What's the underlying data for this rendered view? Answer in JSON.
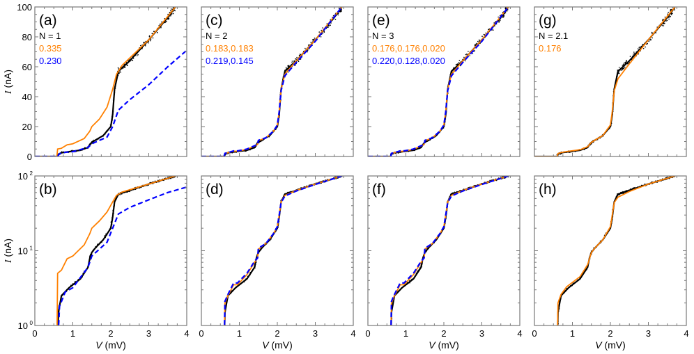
{
  "chart_data": {
    "type": "line",
    "xlabel": "V (mV)",
    "ylabel": "I (nA)",
    "xlim": [
      0,
      4
    ],
    "xticks": [
      "0",
      "1",
      "2",
      "3",
      "4"
    ],
    "ylim_linear": [
      0,
      100
    ],
    "yticks_linear": [
      "0",
      "20",
      "40",
      "60",
      "80",
      "100"
    ],
    "ylim_log": [
      1,
      100
    ],
    "yscale_log_ticks": [
      "10",
      "10",
      "10"
    ],
    "yscale_log_exponents": [
      "0",
      "1",
      "2"
    ],
    "colors": {
      "experiment": "#000000",
      "fit1": "#ff8000",
      "fit2": "#0000ff"
    },
    "curves": {
      "exp": [
        [
          0,
          0
        ],
        [
          0.6,
          0
        ],
        [
          0.62,
          1.5
        ],
        [
          0.7,
          2.5
        ],
        [
          0.9,
          3.2
        ],
        [
          1.2,
          4.2
        ],
        [
          1.4,
          6
        ],
        [
          1.45,
          8
        ],
        [
          1.5,
          9.5
        ],
        [
          1.6,
          11
        ],
        [
          1.8,
          14
        ],
        [
          2.0,
          20
        ],
        [
          2.05,
          28
        ],
        [
          2.1,
          45
        ],
        [
          2.2,
          57
        ],
        [
          2.5,
          64
        ],
        [
          3.0,
          78
        ],
        [
          3.5,
          93
        ],
        [
          3.7,
          100
        ]
      ],
      "a_orange": [
        [
          0,
          0
        ],
        [
          0.58,
          0
        ],
        [
          0.6,
          5
        ],
        [
          0.7,
          5.5
        ],
        [
          0.85,
          7.8
        ],
        [
          1.0,
          8.5
        ],
        [
          1.3,
          12
        ],
        [
          1.45,
          17
        ],
        [
          1.5,
          20
        ],
        [
          1.7,
          25
        ],
        [
          1.9,
          33
        ],
        [
          2.05,
          45
        ],
        [
          2.15,
          55
        ],
        [
          2.3,
          61
        ],
        [
          3.0,
          78
        ],
        [
          3.7,
          100
        ]
      ],
      "a_blue": [
        [
          0,
          0
        ],
        [
          0.6,
          0
        ],
        [
          0.65,
          1.8
        ],
        [
          0.8,
          2.8
        ],
        [
          1.0,
          3.2
        ],
        [
          1.4,
          6
        ],
        [
          1.5,
          8.5
        ],
        [
          1.9,
          13
        ],
        [
          2.05,
          20
        ],
        [
          2.2,
          31
        ],
        [
          2.5,
          38
        ],
        [
          3.0,
          48
        ],
        [
          3.5,
          60
        ],
        [
          4.0,
          71
        ]
      ],
      "c_orange": [
        [
          0,
          0
        ],
        [
          0.6,
          0
        ],
        [
          0.62,
          2
        ],
        [
          0.7,
          2.5
        ],
        [
          0.85,
          3.5
        ],
        [
          0.95,
          3.5
        ],
        [
          1.2,
          4.8
        ],
        [
          1.4,
          7
        ],
        [
          1.48,
          8
        ],
        [
          1.5,
          10.5
        ],
        [
          1.7,
          12.5
        ],
        [
          1.9,
          17
        ],
        [
          2.0,
          21
        ],
        [
          2.05,
          30
        ],
        [
          2.1,
          45
        ],
        [
          2.2,
          55
        ],
        [
          2.5,
          64
        ],
        [
          3.0,
          78
        ],
        [
          3.7,
          100
        ]
      ],
      "c_blue": [
        [
          0,
          0
        ],
        [
          0.6,
          0
        ],
        [
          0.62,
          2.1
        ],
        [
          0.7,
          2.6
        ],
        [
          0.85,
          3.7
        ],
        [
          0.95,
          3.7
        ],
        [
          1.2,
          5
        ],
        [
          1.4,
          7.2
        ],
        [
          1.48,
          8
        ],
        [
          1.5,
          10.8
        ],
        [
          1.7,
          12.5
        ],
        [
          1.9,
          17
        ],
        [
          2.0,
          21
        ],
        [
          2.05,
          30
        ],
        [
          2.1,
          44
        ],
        [
          2.2,
          54
        ],
        [
          2.5,
          63
        ],
        [
          3.0,
          77
        ],
        [
          3.7,
          100
        ]
      ],
      "g_orange": [
        [
          0,
          0
        ],
        [
          0.6,
          0
        ],
        [
          0.62,
          2
        ],
        [
          0.7,
          2.6
        ],
        [
          0.85,
          3.3
        ],
        [
          1.2,
          4.5
        ],
        [
          1.4,
          6.5
        ],
        [
          1.5,
          9.5
        ],
        [
          1.6,
          11
        ],
        [
          1.8,
          14
        ],
        [
          2.0,
          21
        ],
        [
          2.05,
          30
        ],
        [
          2.1,
          44
        ],
        [
          2.2,
          52
        ],
        [
          2.5,
          62
        ],
        [
          3.0,
          78
        ],
        [
          3.7,
          100
        ]
      ]
    },
    "panels": [
      {
        "label": "(a)",
        "scale": "linear",
        "N": "N = 1",
        "orange": "0.335",
        "blue": "0.230",
        "fits": [
          "a_orange",
          "a_blue"
        ]
      },
      {
        "label": "(c)",
        "scale": "linear",
        "N": "N = 2",
        "orange": "0.183,0.183",
        "blue": "0.219,0.145",
        "fits": [
          "c_orange",
          "c_blue"
        ]
      },
      {
        "label": "(e)",
        "scale": "linear",
        "N": "N = 3",
        "orange": "0.176,0.176,0.020",
        "blue": "0.220,0.128,0.020",
        "fits": [
          "c_orange",
          "c_blue"
        ]
      },
      {
        "label": "(g)",
        "scale": "linear",
        "N": "N = 2.1",
        "orange": "0.176",
        "blue": "",
        "fits": [
          "g_orange"
        ]
      },
      {
        "label": "(b)",
        "scale": "log",
        "fits": [
          "a_orange",
          "a_blue"
        ]
      },
      {
        "label": "(d)",
        "scale": "log",
        "fits": [
          "c_orange",
          "c_blue"
        ]
      },
      {
        "label": "(f)",
        "scale": "log",
        "fits": [
          "c_orange",
          "c_blue"
        ]
      },
      {
        "label": "(h)",
        "scale": "log",
        "fits": [
          "g_orange"
        ]
      }
    ]
  }
}
